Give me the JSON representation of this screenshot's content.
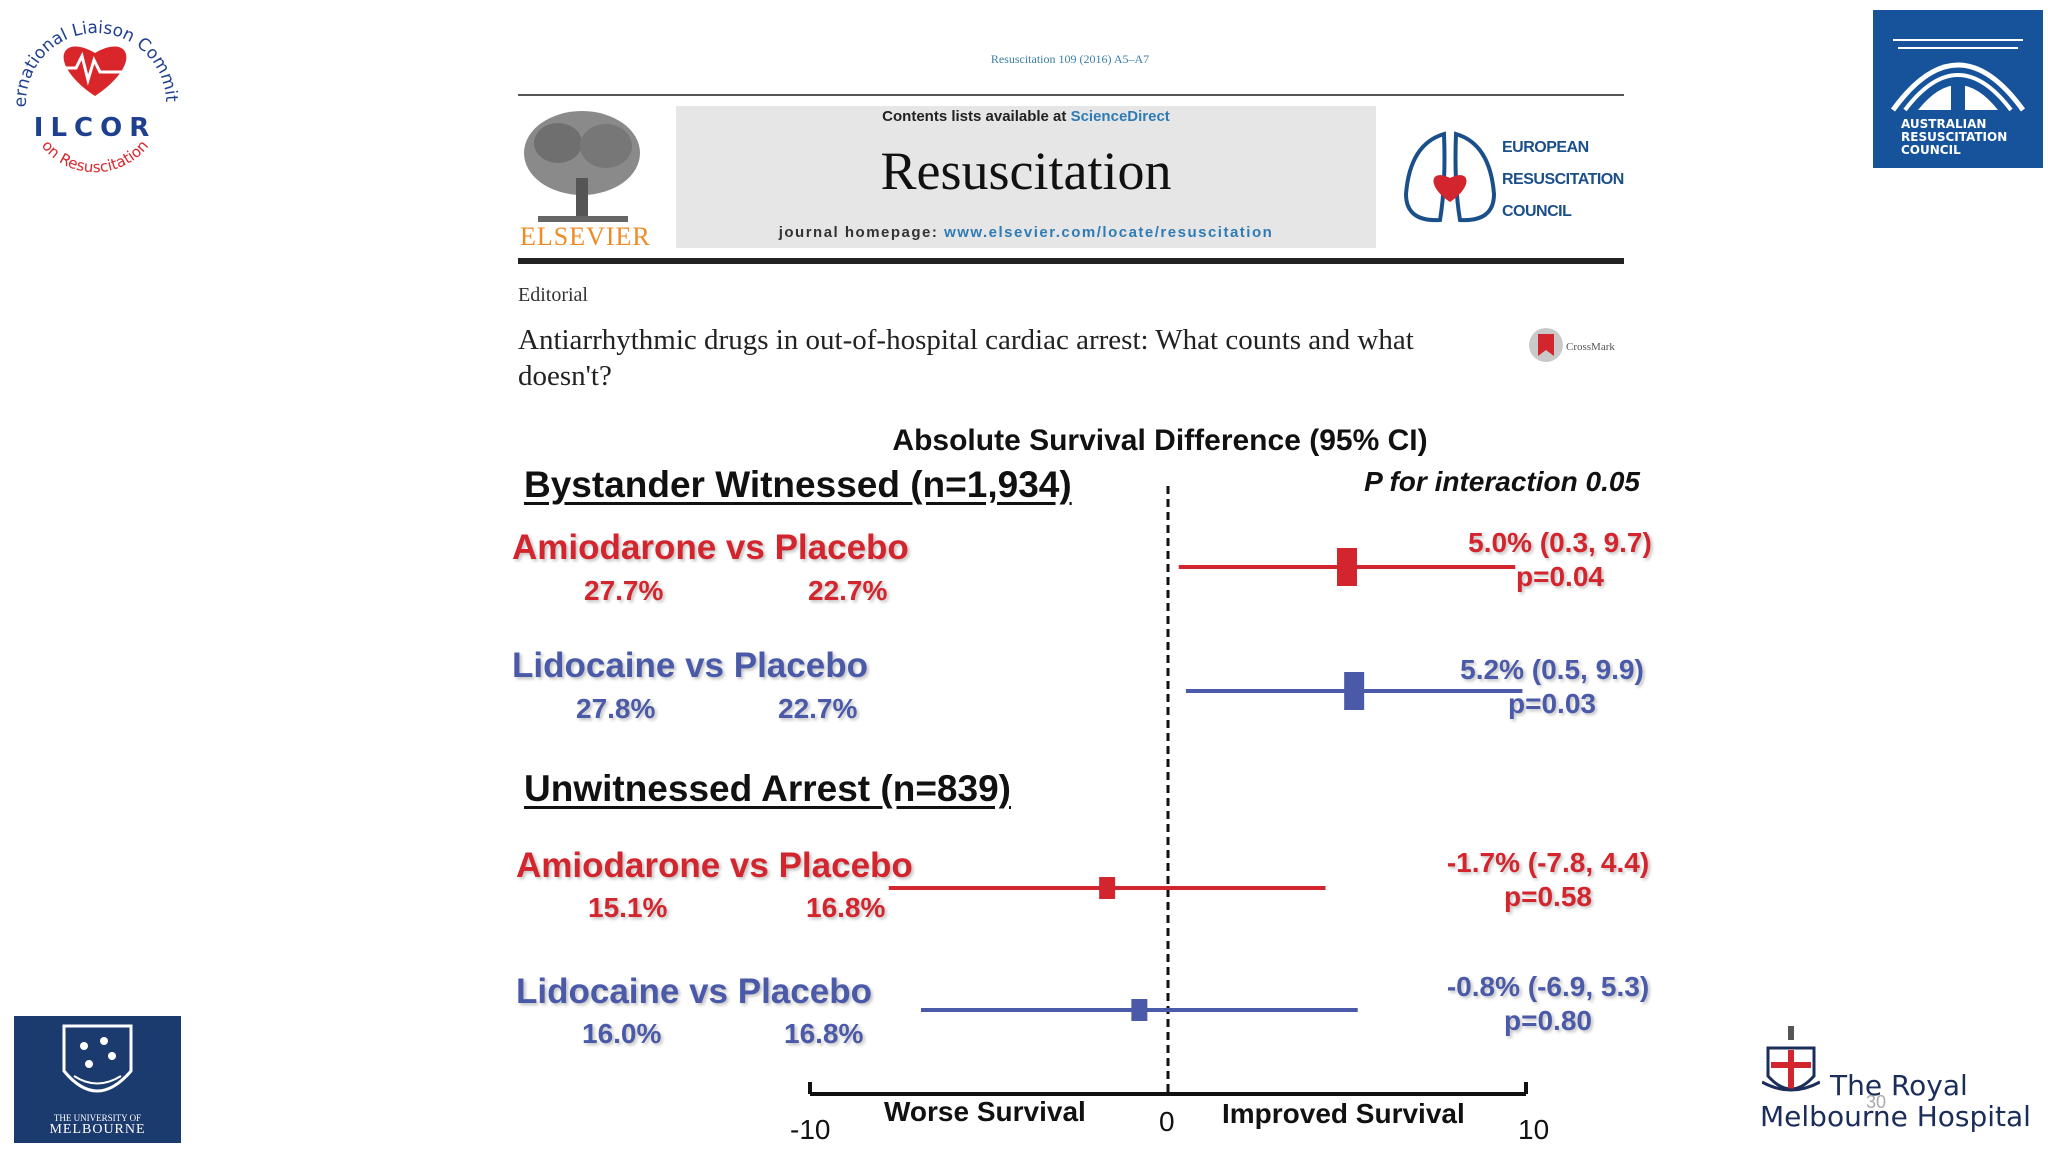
{
  "header": {
    "citation": "Resuscitation 109 (2016) A5–A7",
    "contents_prefix": "Contents lists available at ",
    "contents_link": "ScienceDirect",
    "journal": "Resuscitation",
    "homepage_prefix": "journal homepage: ",
    "homepage_url": "www.elsevier.com/locate/resuscitation",
    "publisher": "ELSEVIER",
    "society_lines": [
      "EUROPEAN",
      "RESUSCITATION",
      "COUNCIL"
    ],
    "section": "Editorial",
    "title": "Antiarrhythmic drugs in out-of-hospital cardiac arrest: What counts and what doesn't?",
    "crossmark": "CrossMark"
  },
  "logos": {
    "ilcor_top": "International Liaison Committee",
    "ilcor_mid": "ILCOR",
    "ilcor_bottom": "on Resuscitation",
    "arc": [
      "AUSTRALIAN",
      "RESUSCITATION",
      "COUNCIL"
    ],
    "uom": [
      "THE UNIVERSITY OF",
      "MELBOURNE"
    ],
    "rmh": [
      "The Royal",
      "Melbourne Hospital"
    ]
  },
  "slide_number": "30",
  "chart_data": {
    "type": "forest",
    "title": "Absolute Survival Difference (95% CI)",
    "interaction_note": "P for interaction 0.05",
    "xlim": [
      -10,
      10
    ],
    "xticks": [
      "-10",
      "0",
      "10"
    ],
    "xlabel_left": "Worse Survival",
    "xlabel_right": "Improved Survival",
    "groups": [
      {
        "label": "Bystander Witnessed (n=1,934)",
        "rows": [
          {
            "comparison": "Amiodarone vs Placebo",
            "drug_pct": "27.7%",
            "placebo_pct": "22.7%",
            "estimate": 5.0,
            "ci": [
              0.3,
              9.7
            ],
            "ci_text": "5.0% (0.3, 9.7)",
            "p_text": "p=0.04",
            "color": "#d3252d"
          },
          {
            "comparison": "Lidocaine vs Placebo",
            "drug_pct": "27.8%",
            "placebo_pct": "22.7%",
            "estimate": 5.2,
            "ci": [
              0.5,
              9.9
            ],
            "ci_text": "5.2% (0.5, 9.9)",
            "p_text": "p=0.03",
            "color": "#4a5aa8"
          }
        ]
      },
      {
        "label": "Unwitnessed Arrest (n=839)",
        "rows": [
          {
            "comparison": "Amiodarone vs Placebo",
            "drug_pct": "15.1%",
            "placebo_pct": "16.8%",
            "estimate": -1.7,
            "ci": [
              -7.8,
              4.4
            ],
            "ci_text": "-1.7% (-7.8, 4.4)",
            "p_text": "p=0.58",
            "color": "#d3252d"
          },
          {
            "comparison": "Lidocaine vs Placebo",
            "drug_pct": "16.0%",
            "placebo_pct": "16.8%",
            "estimate": -0.8,
            "ci": [
              -6.9,
              5.3
            ],
            "ci_text": "-0.8% (-6.9, 5.3)",
            "p_text": "p=0.80",
            "color": "#4a5aa8"
          }
        ]
      }
    ]
  }
}
